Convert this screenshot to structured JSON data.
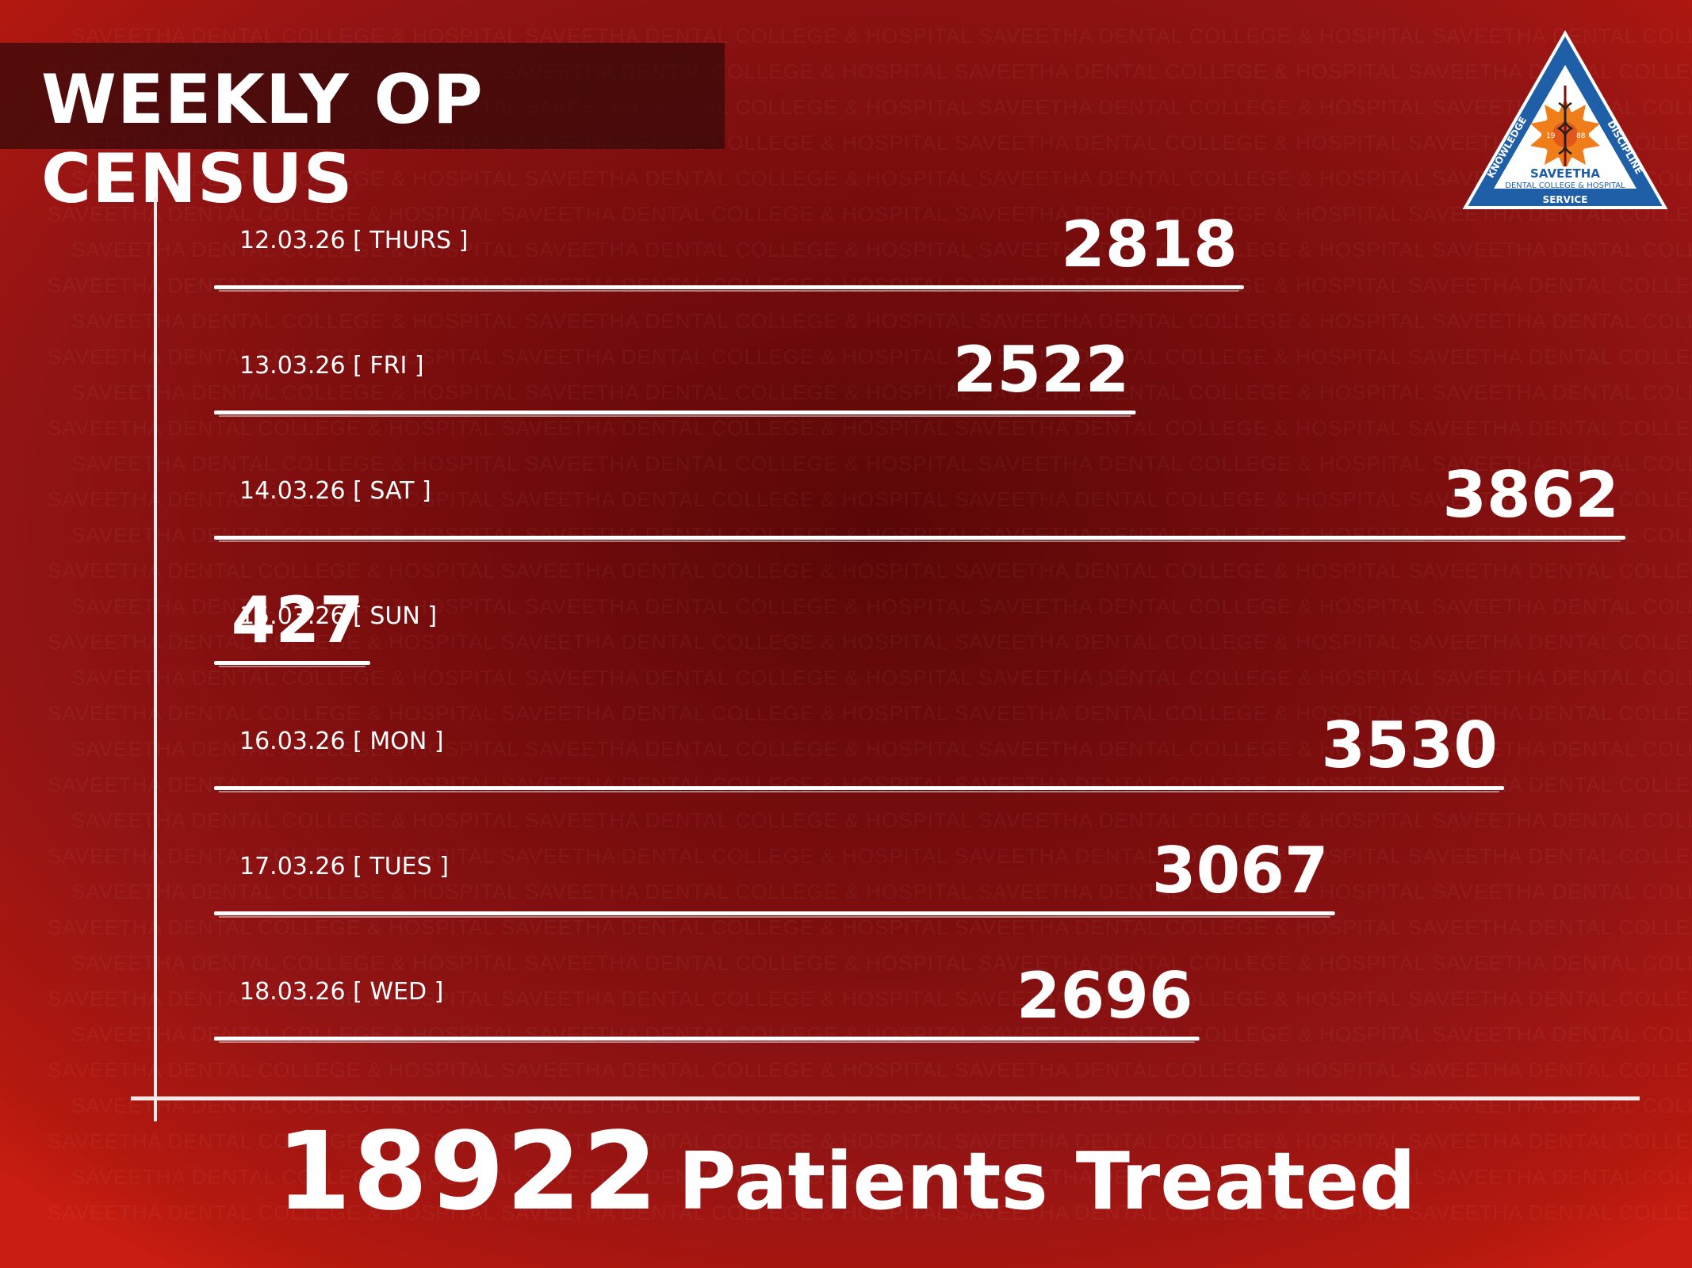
{
  "title": "WEEKLY OP CENSUS",
  "watermark_text": "SAVEETHA DENTAL COLLEGE & HOSPITAL",
  "logo": {
    "name": "SAVEETHA",
    "subtitle": "DENTAL COLLEGE & HOSPITAL",
    "left_word": "KNOWLEDGE",
    "right_word": "DISCIPLINE",
    "bottom_word": "SERVICE",
    "year_left": "19",
    "year_right": "88"
  },
  "colors": {
    "text": "#ffffff",
    "logo_blue": "#1f5fa8",
    "logo_orange": "#ef7d1a"
  },
  "chart_data": {
    "type": "bar",
    "orientation": "horizontal",
    "categories": [
      "12.03.26 [ THURS ]",
      "13.03.26 [ FRI ]",
      "14.03.26 [ SAT ]",
      "15.03.26 [ SUN ]",
      "16.03.26 [ MON ]",
      "17.03.26 [ TUES ]",
      "18.03.26 [ WED ]"
    ],
    "values": [
      2818,
      2522,
      3862,
      427,
      3530,
      3067,
      2696
    ],
    "value_labels": [
      "2818",
      "2522",
      "3862",
      "427",
      "3530",
      "3067",
      "2696"
    ],
    "grid": false,
    "legend": "none"
  },
  "total": {
    "value": "18922",
    "label": "Patients Treated"
  }
}
